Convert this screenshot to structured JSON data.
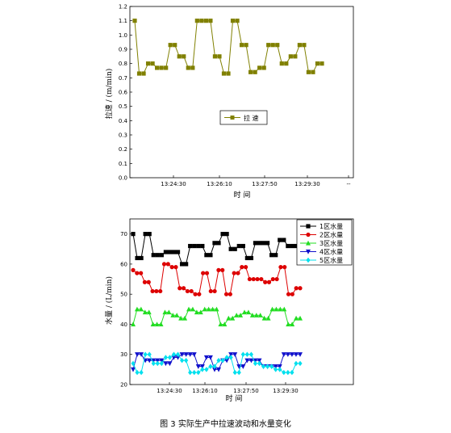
{
  "caption": "图 3  实际生产中拉速波动和水量变化",
  "chart_data": [
    {
      "type": "line",
      "xlabel": "时 间",
      "ylabel": "拉速 / (m/min)",
      "x_ticks": [
        "13:24:30",
        "13:26:10",
        "13:27:50",
        "13:29:30",
        "--"
      ],
      "y_ticks": [
        "0.0",
        "0.1",
        "0.2",
        "0.3",
        "0.4",
        "0.5",
        "0.6",
        "0.7",
        "0.8",
        "0.9",
        "1.0",
        "1.1",
        "1.2"
      ],
      "ylim": [
        0,
        1.2
      ],
      "legend_position": "center-right",
      "grid": false,
      "series": [
        {
          "name": "拉 速",
          "color": "#808000",
          "marker": "square",
          "values": [
            1.1,
            0.73,
            0.73,
            0.8,
            0.8,
            0.77,
            0.77,
            0.77,
            0.93,
            0.93,
            0.85,
            0.85,
            0.77,
            0.77,
            1.1,
            1.1,
            1.1,
            1.1,
            0.85,
            0.85,
            0.73,
            0.73,
            1.1,
            1.1,
            0.93,
            0.93,
            0.74,
            0.74,
            0.77,
            0.77,
            0.93,
            0.93,
            0.93,
            0.8,
            0.8,
            0.85,
            0.85,
            0.93,
            0.93,
            0.74,
            0.74,
            0.8,
            0.8
          ]
        }
      ]
    },
    {
      "type": "line",
      "xlabel": "时 间",
      "ylabel": "水量 / (L/min)",
      "x_ticks": [
        "13:24:30",
        "13:26:10",
        "13:27:50",
        "13:29:30"
      ],
      "y_ticks": [
        "20",
        "30",
        "40",
        "50",
        "60",
        "70"
      ],
      "ylim": [
        20,
        75
      ],
      "legend_position": "top-right",
      "grid": false,
      "series": [
        {
          "name": "1区水量",
          "color": "#000000",
          "marker": "square",
          "values": [
            70,
            62,
            62,
            70,
            70,
            63,
            63,
            63,
            64,
            64,
            64,
            64,
            60,
            60,
            66,
            66,
            66,
            66,
            63,
            63,
            67,
            67,
            70,
            70,
            65,
            65,
            66,
            66,
            62,
            62,
            67,
            67,
            67,
            67,
            63,
            63,
            68,
            68,
            66,
            66,
            66,
            66
          ]
        },
        {
          "name": "2区水量",
          "color": "#dd0000",
          "marker": "circle",
          "values": [
            58,
            57,
            57,
            54,
            54,
            51,
            51,
            51,
            60,
            60,
            59,
            59,
            52,
            52,
            51,
            51,
            50,
            50,
            57,
            57,
            51,
            51,
            58,
            58,
            50,
            50,
            57,
            57,
            59,
            59,
            55,
            55,
            55,
            55,
            54,
            54,
            55,
            55,
            59,
            59,
            50,
            50,
            52,
            52
          ]
        },
        {
          "name": "3区水量",
          "color": "#22dd22",
          "marker": "triangle-up",
          "values": [
            40,
            45,
            45,
            44,
            44,
            40,
            40,
            40,
            44,
            44,
            43,
            43,
            42,
            42,
            45,
            45,
            44,
            44,
            45,
            45,
            45,
            45,
            40,
            40,
            42,
            42,
            43,
            43,
            44,
            44,
            43,
            43,
            43,
            42,
            42,
            45,
            45,
            45,
            45,
            40,
            40,
            42,
            42
          ]
        },
        {
          "name": "4区水量",
          "color": "#1111cc",
          "marker": "triangle-down",
          "values": [
            25,
            30,
            30,
            28,
            28,
            28,
            28,
            28,
            27,
            27,
            29,
            29,
            30,
            30,
            30,
            30,
            26,
            26,
            29,
            29,
            25,
            25,
            28,
            28,
            30,
            30,
            26,
            26,
            28,
            28,
            28,
            28,
            26,
            26,
            26,
            26,
            26,
            30,
            30,
            30,
            30,
            30
          ]
        },
        {
          "name": "5区水量",
          "color": "#00e0ee",
          "marker": "diamond",
          "values": [
            27,
            24,
            24,
            30,
            30,
            27,
            27,
            27,
            29,
            29,
            30,
            30,
            28,
            28,
            24,
            24,
            24,
            25,
            25,
            26,
            26,
            28,
            28,
            29,
            29,
            24,
            24,
            30,
            30,
            30,
            27,
            27,
            26,
            26,
            26,
            25,
            25,
            24,
            24,
            24,
            27,
            27
          ]
        }
      ]
    }
  ]
}
